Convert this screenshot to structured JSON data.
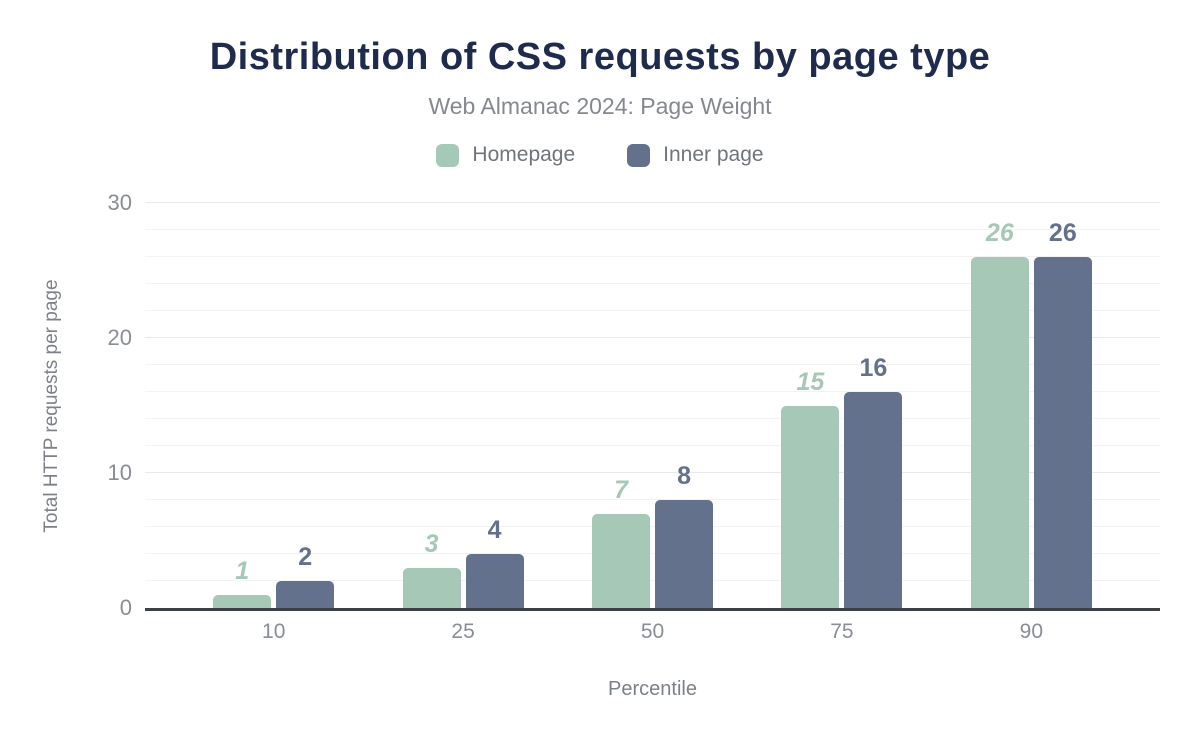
{
  "chart_data": {
    "type": "bar",
    "title": "Distribution of CSS requests by page type",
    "subtitle": "Web Almanac 2024: Page Weight",
    "categories": [
      "10",
      "25",
      "50",
      "75",
      "90"
    ],
    "series": [
      {
        "name": "Homepage",
        "color": "#a5c9b6",
        "label_italic": true,
        "values": [
          1,
          3,
          7,
          15,
          26
        ]
      },
      {
        "name": "Inner page",
        "color": "#64718c",
        "label_italic": false,
        "values": [
          2,
          4,
          8,
          16,
          26
        ]
      }
    ],
    "xlabel": "Percentile",
    "ylabel": "Total HTTP requests per page",
    "ylim": [
      0,
      30
    ],
    "yticks": [
      0,
      10,
      20,
      30
    ],
    "grid": {
      "minor_step": 2,
      "major_step": 10,
      "minor_color": "#f3f3f4",
      "major_color": "#e9e9eb"
    },
    "legend_position": "top",
    "data_labels": true,
    "colors": {
      "title": "#1e2b4d",
      "subtitle": "#84888f",
      "axis_text": "#898d94",
      "axis_title_text": "#7c8187",
      "axis_line": "#3d4045",
      "background": "#ffffff"
    }
  }
}
